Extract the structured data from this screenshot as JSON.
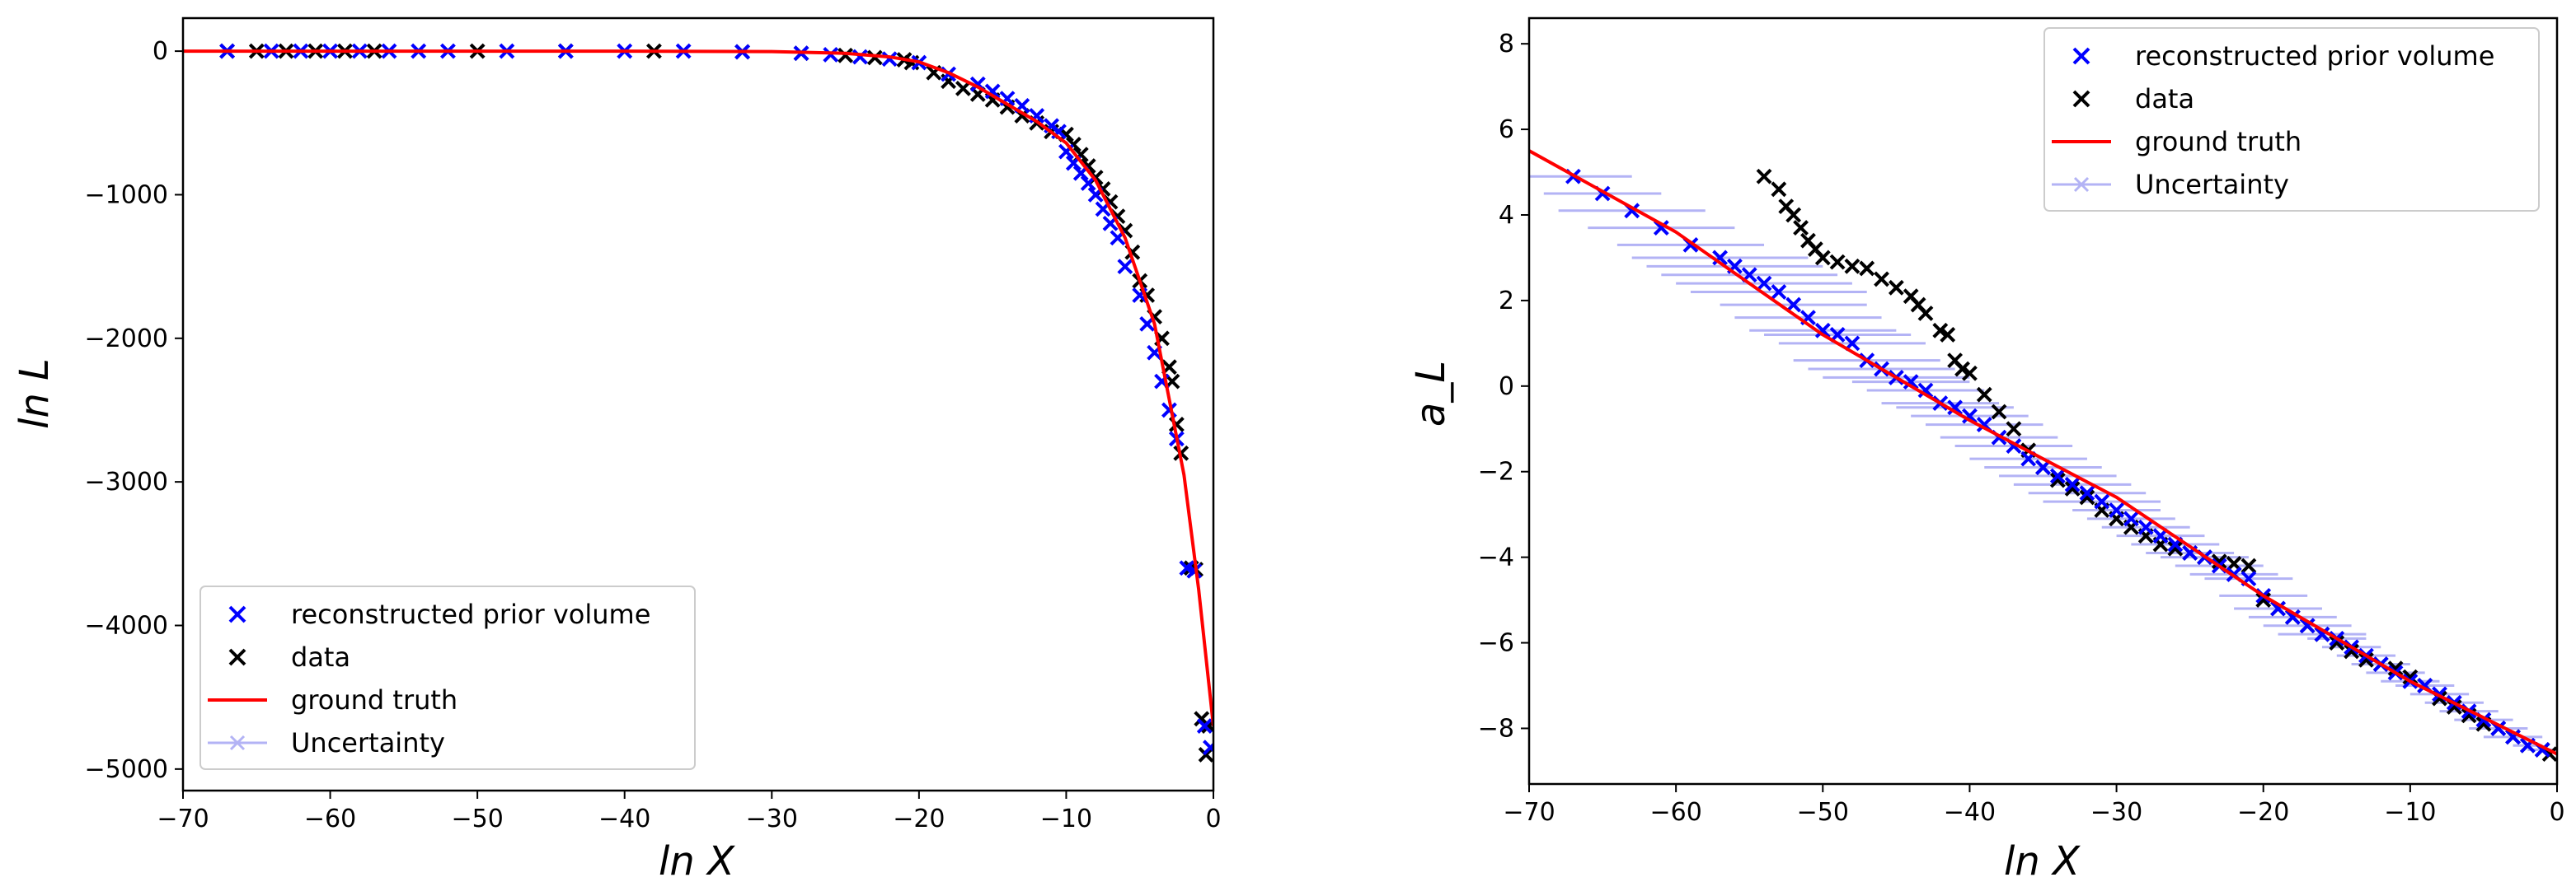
{
  "chart_data": [
    {
      "type": "scatter",
      "title": "",
      "xlabel": "ln X",
      "ylabel": "ln L",
      "xlim": [
        -70,
        0
      ],
      "ylim": [
        -5150,
        230
      ],
      "xticks": [
        "−70",
        "−60",
        "−50",
        "−40",
        "−30",
        "−20",
        "−10",
        "0"
      ],
      "yticks": [
        "0",
        "−1000",
        "−2000",
        "−3000",
        "−4000",
        "−5000"
      ],
      "legend": {
        "placement": "lower-left",
        "entries": [
          {
            "label": "reconstructed prior volume",
            "marker": "x",
            "color": "#0000ff"
          },
          {
            "label": "data",
            "marker": "x",
            "color": "#000000"
          },
          {
            "label": "ground truth",
            "marker": "line",
            "color": "#ff0000"
          },
          {
            "label": "Uncertainty",
            "marker": "x-errorbar",
            "color": "#b3b3f5"
          }
        ]
      },
      "series": [
        {
          "name": "ground truth",
          "kind": "line",
          "color": "#ff0000",
          "x": [
            -70,
            -40,
            -30,
            -25,
            -22,
            -20,
            -18,
            -16,
            -14,
            -12,
            -10,
            -8,
            -6,
            -4,
            -2,
            -1,
            0
          ],
          "y": [
            0,
            0,
            -3,
            -15,
            -40,
            -75,
            -150,
            -250,
            -370,
            -490,
            -640,
            -900,
            -1300,
            -1900,
            -2950,
            -3750,
            -4700
          ]
        },
        {
          "name": "data",
          "kind": "scatter",
          "color": "#000000",
          "x": [
            -67,
            -65,
            -63,
            -61,
            -59,
            -57,
            -50,
            -44,
            -38,
            -32,
            -28,
            -25,
            -23,
            -21,
            -20.5,
            -19,
            -18,
            -17,
            -16,
            -15,
            -14,
            -13,
            -12,
            -11,
            -10,
            -9.5,
            -9,
            -8.5,
            -8,
            -7.5,
            -7,
            -6.5,
            -6,
            -5.5,
            -5,
            -4.5,
            -4,
            -3.5,
            -3,
            -2.8,
            -2.5,
            -2.2,
            -1.5,
            -1.2,
            -0.8,
            -0.5,
            -0.3
          ],
          "y": [
            0,
            0,
            0,
            0,
            0,
            0,
            0,
            0,
            0,
            -5,
            -15,
            -30,
            -45,
            -60,
            -80,
            -150,
            -210,
            -260,
            -300,
            -340,
            -390,
            -450,
            -500,
            -560,
            -580,
            -650,
            -720,
            -800,
            -880,
            -960,
            -1050,
            -1150,
            -1250,
            -1400,
            -1600,
            -1700,
            -1850,
            -2000,
            -2200,
            -2300,
            -2600,
            -2800,
            -3600,
            -3610,
            -4650,
            -4900,
            -4700
          ]
        },
        {
          "name": "reconstructed prior volume",
          "kind": "scatter",
          "color": "#0000ff",
          "x": [
            -67,
            -64,
            -62,
            -60,
            -58,
            -56,
            -54,
            -52,
            -48,
            -44,
            -40,
            -36,
            -32,
            -28,
            -26,
            -24,
            -22,
            -20,
            -18,
            -16,
            -15,
            -14,
            -13,
            -12,
            -11,
            -10.5,
            -10,
            -9.5,
            -9,
            -8.5,
            -8,
            -7.5,
            -7,
            -6.5,
            -6,
            -5,
            -4.5,
            -4,
            -3.5,
            -3,
            -2.5,
            -1.8,
            -1.3,
            -0.6,
            -0.2
          ],
          "y": [
            0,
            0,
            0,
            0,
            0,
            0,
            0,
            0,
            0,
            0,
            0,
            0,
            -5,
            -15,
            -25,
            -40,
            -55,
            -80,
            -160,
            -230,
            -280,
            -330,
            -380,
            -450,
            -520,
            -560,
            -700,
            -780,
            -850,
            -920,
            -1000,
            -1100,
            -1200,
            -1300,
            -1500,
            -1700,
            -1900,
            -2100,
            -2300,
            -2500,
            -2700,
            -3600,
            -3620,
            -4700,
            -4850
          ]
        }
      ]
    },
    {
      "type": "scatter",
      "title": "",
      "xlabel": "ln X",
      "ylabel": "a_L",
      "xlim": [
        -70,
        0
      ],
      "ylim": [
        -9.3,
        8.6
      ],
      "xticks": [
        "−70",
        "−60",
        "−50",
        "−40",
        "−30",
        "−20",
        "−10",
        "0"
      ],
      "yticks": [
        "8",
        "6",
        "4",
        "2",
        "0",
        "−2",
        "−4",
        "−6",
        "−8"
      ],
      "legend": {
        "placement": "upper-right",
        "entries": [
          {
            "label": "reconstructed prior volume",
            "marker": "x",
            "color": "#0000ff"
          },
          {
            "label": "data",
            "marker": "x",
            "color": "#000000"
          },
          {
            "label": "ground truth",
            "marker": "line",
            "color": "#ff0000"
          },
          {
            "label": "Uncertainty",
            "marker": "x-errorbar",
            "color": "#b3b3f5"
          }
        ]
      },
      "series": [
        {
          "name": "ground truth",
          "kind": "line",
          "color": "#ff0000",
          "x": [
            -70,
            -60,
            -50,
            -40,
            -30,
            -20,
            -10,
            0
          ],
          "y": [
            5.5,
            3.6,
            1.2,
            -0.8,
            -2.6,
            -4.9,
            -6.9,
            -8.6
          ]
        },
        {
          "name": "data",
          "kind": "scatter",
          "color": "#000000",
          "x": [
            -54,
            -53,
            -52.5,
            -52,
            -51.5,
            -51,
            -50.5,
            -50,
            -49,
            -48,
            -47,
            -46,
            -45,
            -44,
            -43.5,
            -43,
            -42,
            -41.5,
            -41,
            -40.5,
            -40,
            -39,
            -38,
            -37,
            -36,
            -35,
            -34,
            -33,
            -32,
            -31,
            -30,
            -29,
            -28,
            -27,
            -26,
            -25,
            -24,
            -23,
            -22,
            -21,
            -20,
            -19,
            -18,
            -17,
            -16,
            -15,
            -14,
            -13,
            -12,
            -11,
            -10,
            -9,
            -8,
            -7,
            -6,
            -5,
            -4,
            -3,
            -2,
            -1,
            -0.5
          ],
          "y": [
            4.9,
            4.6,
            4.2,
            4.0,
            3.7,
            3.4,
            3.2,
            3.0,
            2.9,
            2.8,
            2.75,
            2.5,
            2.3,
            2.1,
            1.9,
            1.7,
            1.3,
            1.2,
            0.6,
            0.4,
            0.3,
            -0.2,
            -0.6,
            -1.0,
            -1.5,
            -1.9,
            -2.2,
            -2.4,
            -2.6,
            -2.9,
            -3.1,
            -3.3,
            -3.5,
            -3.7,
            -3.8,
            -3.9,
            -4.0,
            -4.1,
            -4.15,
            -4.2,
            -5.0,
            -5.2,
            -5.4,
            -5.6,
            -5.8,
            -6.0,
            -6.2,
            -6.4,
            -6.5,
            -6.6,
            -6.8,
            -7.0,
            -7.3,
            -7.5,
            -7.7,
            -7.9,
            -8.0,
            -8.2,
            -8.4,
            -8.5,
            -8.6
          ]
        },
        {
          "name": "reconstructed prior volume",
          "kind": "scatter",
          "color": "#0000ff",
          "x": [
            -67,
            -65,
            -63,
            -61,
            -59,
            -57,
            -56,
            -55,
            -54,
            -53,
            -52,
            -51,
            -50,
            -49,
            -48,
            -47,
            -46,
            -45,
            -44,
            -43,
            -42,
            -41,
            -40,
            -39,
            -38,
            -37,
            -36,
            -35,
            -34,
            -33,
            -32,
            -31,
            -30,
            -29,
            -28,
            -27,
            -26,
            -25,
            -24,
            -23,
            -22,
            -21,
            -20,
            -19,
            -18,
            -17,
            -16,
            -15,
            -14,
            -13,
            -12,
            -11,
            -10,
            -9,
            -8,
            -7,
            -6,
            -5,
            -4,
            -3,
            -2,
            -1
          ],
          "y": [
            4.9,
            4.5,
            4.1,
            3.7,
            3.3,
            3.0,
            2.8,
            2.6,
            2.4,
            2.2,
            1.9,
            1.6,
            1.3,
            1.2,
            1.0,
            0.6,
            0.4,
            0.2,
            0.1,
            -0.1,
            -0.4,
            -0.5,
            -0.7,
            -0.9,
            -1.2,
            -1.4,
            -1.7,
            -1.9,
            -2.1,
            -2.3,
            -2.5,
            -2.7,
            -2.9,
            -3.1,
            -3.3,
            -3.5,
            -3.7,
            -3.9,
            -4.0,
            -4.2,
            -4.4,
            -4.5,
            -4.9,
            -5.2,
            -5.4,
            -5.6,
            -5.8,
            -5.9,
            -6.1,
            -6.3,
            -6.5,
            -6.7,
            -6.9,
            -7.0,
            -7.2,
            -7.4,
            -7.6,
            -7.8,
            -8.0,
            -8.2,
            -8.4,
            -8.5
          ],
          "xerr": [
            4,
            4,
            5,
            5,
            5,
            6,
            6,
            6,
            6,
            6,
            5,
            5,
            5,
            5,
            5,
            5,
            5,
            5,
            4,
            4,
            4,
            4,
            4,
            4,
            4,
            4,
            4,
            4,
            4,
            4,
            4,
            4,
            3,
            3,
            3,
            3,
            3,
            3,
            3,
            3,
            3,
            3,
            3,
            3,
            3,
            3,
            3,
            2,
            2,
            2,
            2,
            2,
            2,
            2,
            2,
            2,
            2,
            2,
            2,
            2,
            1,
            1
          ]
        }
      ]
    }
  ]
}
